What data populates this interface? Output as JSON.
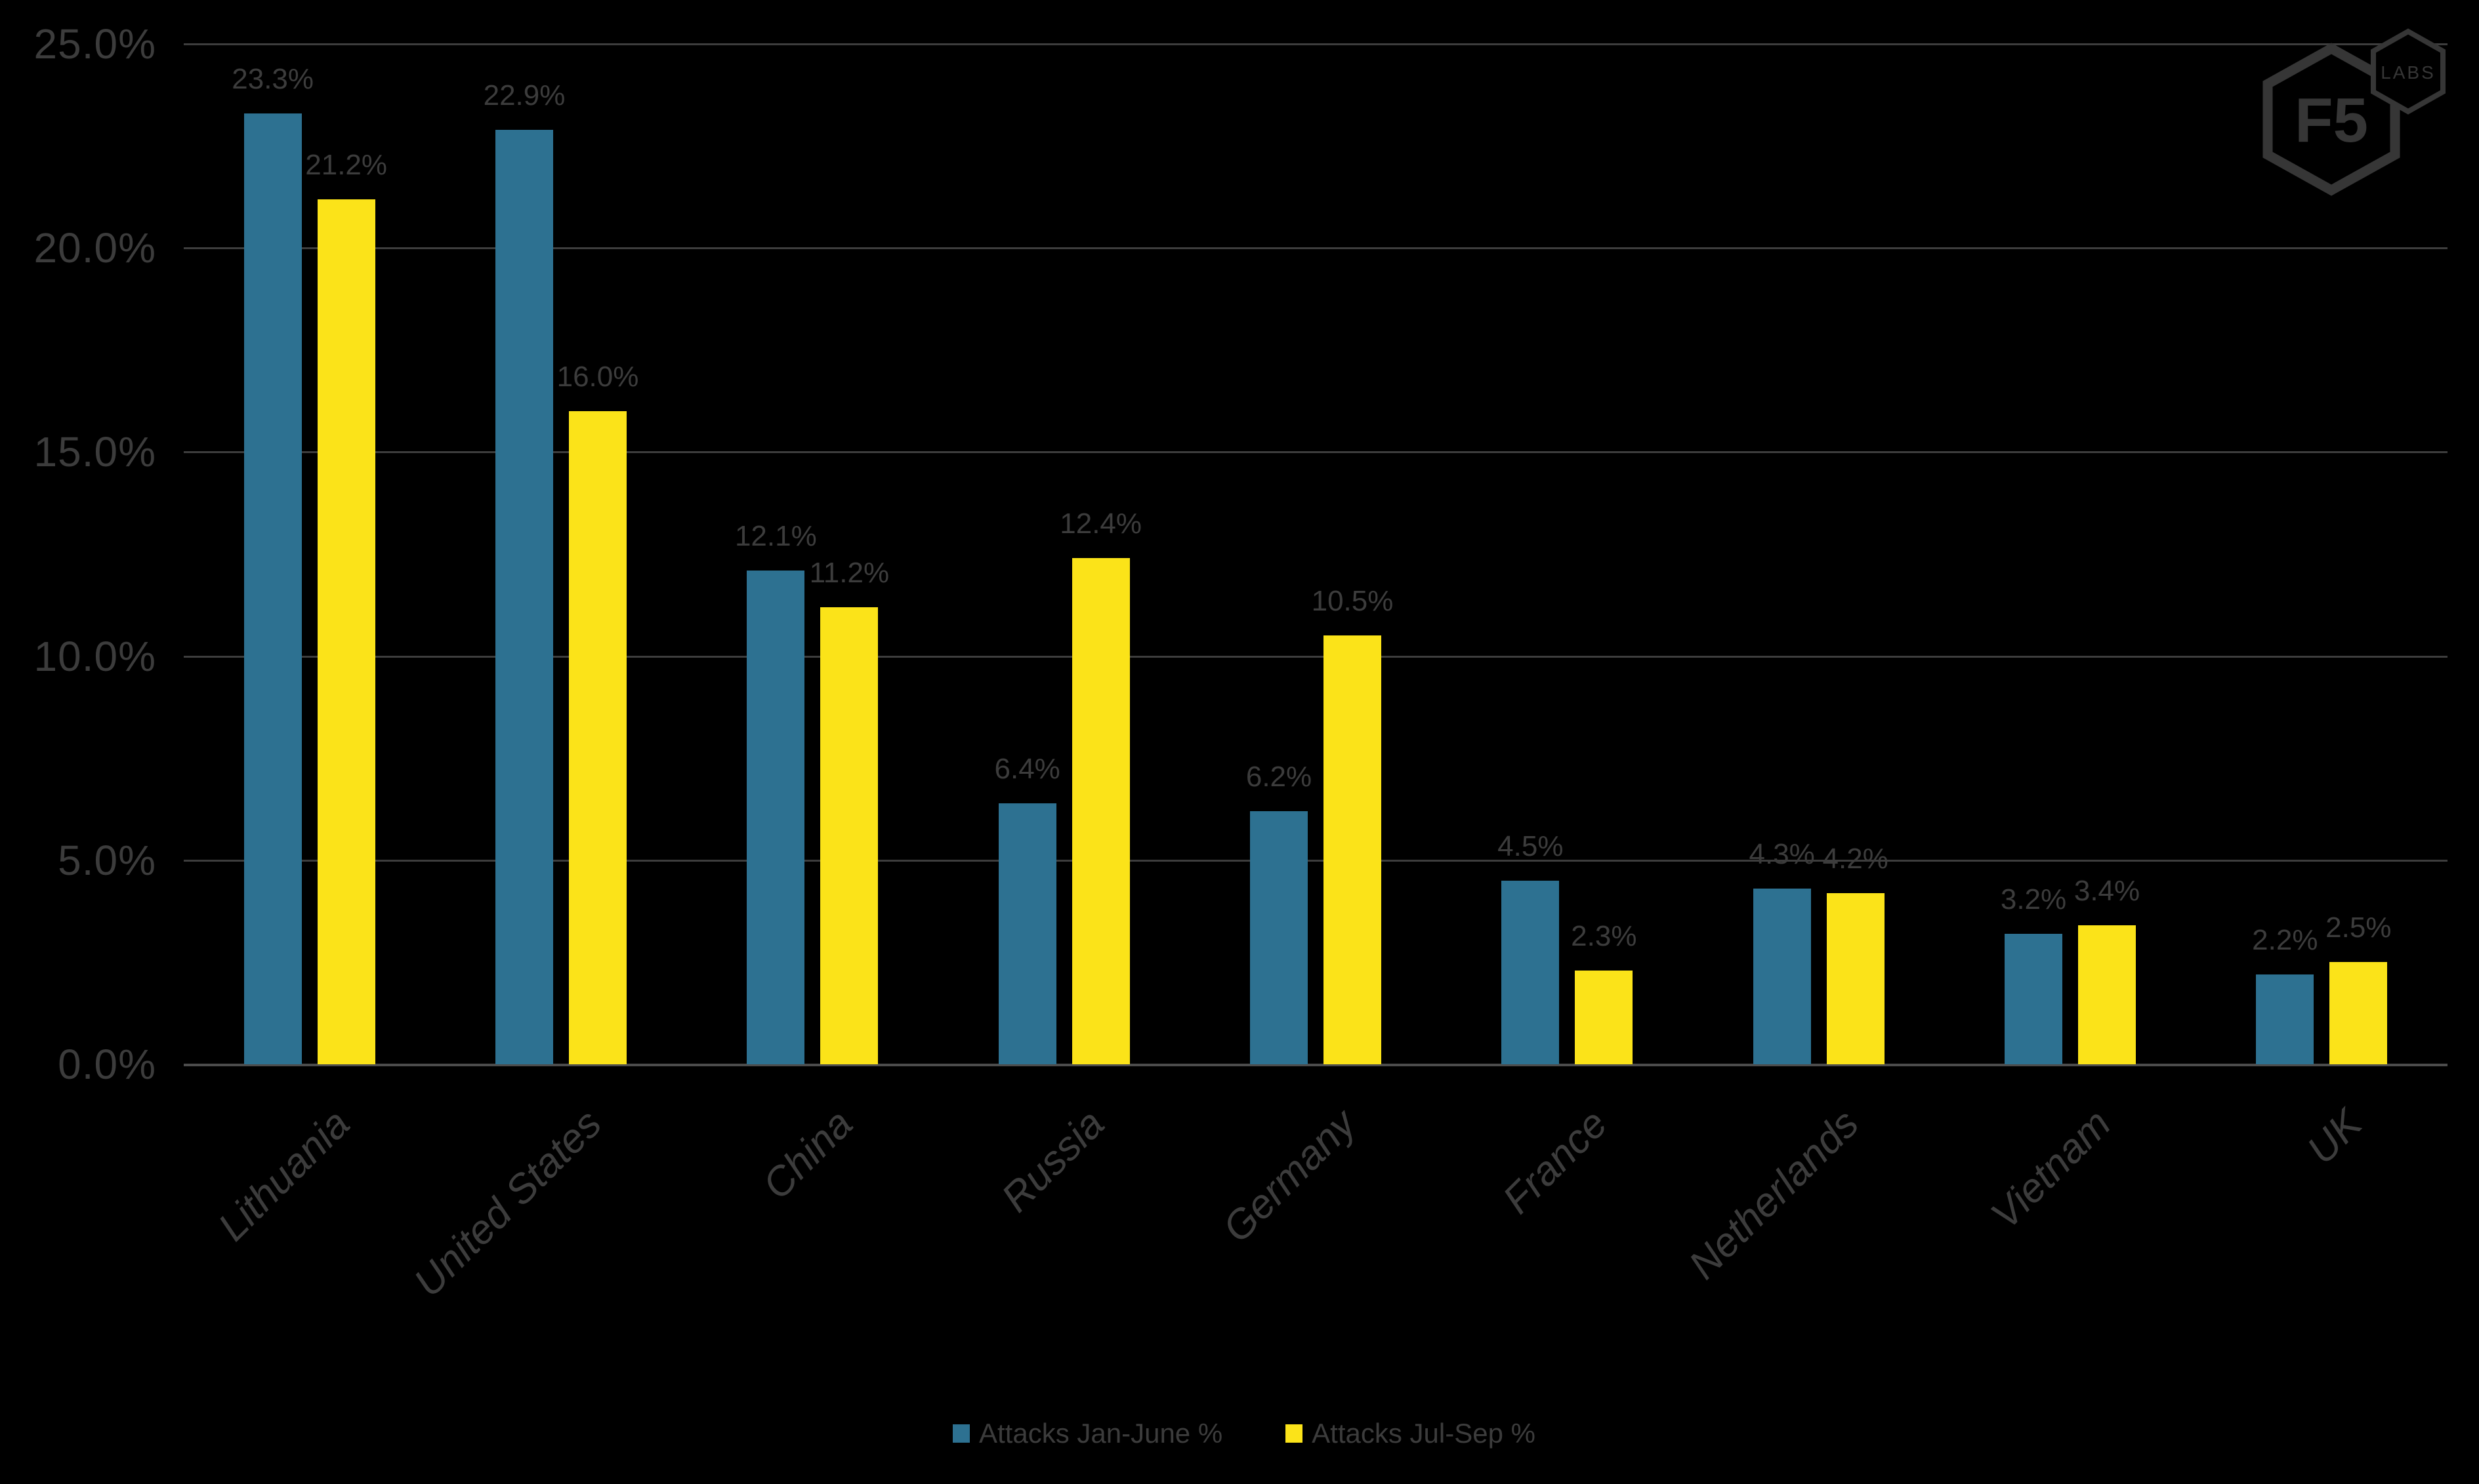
{
  "colors": {
    "background": "#000000",
    "text": "#3c3c3c",
    "grid": "#3d3d3d",
    "axis_line": "#4c4c4c",
    "logo": "#363636",
    "series1": "#2d7191",
    "series2": "#fbe319"
  },
  "logo": {
    "brand": "F5",
    "sub": "LABS"
  },
  "chart_data": {
    "type": "bar",
    "title": "",
    "categories": [
      "Lithuania",
      "United States",
      "China",
      "Russia",
      "Germany",
      "France",
      "Netherlands",
      "Vietnam",
      "UK"
    ],
    "series": [
      {
        "name": "Attacks Jan-June %",
        "color": "#2d7191",
        "values": [
          23.3,
          22.9,
          12.1,
          6.4,
          6.2,
          4.5,
          4.3,
          3.2,
          2.2
        ],
        "labels": [
          "23.3%",
          "22.9%",
          "12.1%",
          "6.4%",
          "6.2%",
          "4.5%",
          "4.3%",
          "3.2%",
          "2.2%"
        ]
      },
      {
        "name": "Attacks Jul-Sep %",
        "color": "#fbe319",
        "values": [
          21.2,
          16.0,
          11.2,
          12.4,
          10.5,
          2.3,
          4.2,
          3.4,
          2.5
        ],
        "labels": [
          "21.2%",
          "16.0%",
          "11.2%",
          "12.4%",
          "10.5%",
          "2.3%",
          "4.2%",
          "3.4%",
          "2.5%"
        ]
      }
    ],
    "y_axis": {
      "min": 0,
      "max": 25,
      "step": 5,
      "tick_labels": [
        "0.0%",
        "5.0%",
        "10.0%",
        "15.0%",
        "20.0%",
        "25.0%"
      ]
    },
    "grid": true,
    "legend_position": "bottom"
  }
}
